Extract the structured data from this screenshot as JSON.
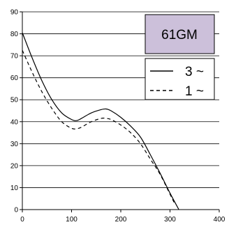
{
  "chart_data": {
    "type": "line",
    "title": "",
    "xlabel": "",
    "ylabel": "",
    "xlim": [
      0,
      400
    ],
    "ylim": [
      0,
      90
    ],
    "xticks": [
      0,
      100,
      200,
      300,
      400
    ],
    "yticks": [
      0,
      10,
      20,
      30,
      40,
      50,
      60,
      70,
      80,
      90
    ],
    "grid": "horizontal",
    "legend_position": "right",
    "title_box": {
      "text": "61GM",
      "fill": "#ccc0da",
      "stroke": "#000000"
    },
    "series": [
      {
        "name": "3 ~",
        "style": "solid",
        "color": "#000000",
        "x": [
          0,
          20,
          40,
          60,
          80,
          100,
          110,
          120,
          140,
          160,
          170,
          180,
          200,
          220,
          240,
          260,
          280,
          300,
          318
        ],
        "y": [
          80.5,
          69,
          58.5,
          50,
          44,
          41,
          40.5,
          41.5,
          44,
          45.5,
          45.8,
          45,
          42,
          38,
          33,
          25,
          16.5,
          7.5,
          0
        ]
      },
      {
        "name": "1 ~",
        "style": "dashed",
        "color": "#000000",
        "x": [
          0,
          20,
          40,
          60,
          80,
          100,
          110,
          120,
          140,
          160,
          170,
          180,
          200,
          220,
          240,
          260,
          280,
          300,
          310
        ],
        "y": [
          72.5,
          62.5,
          53.5,
          46,
          40,
          37,
          36.8,
          37.5,
          40,
          41.5,
          41.5,
          41,
          38.5,
          35,
          30,
          23,
          16,
          7,
          2.5
        ]
      }
    ]
  }
}
